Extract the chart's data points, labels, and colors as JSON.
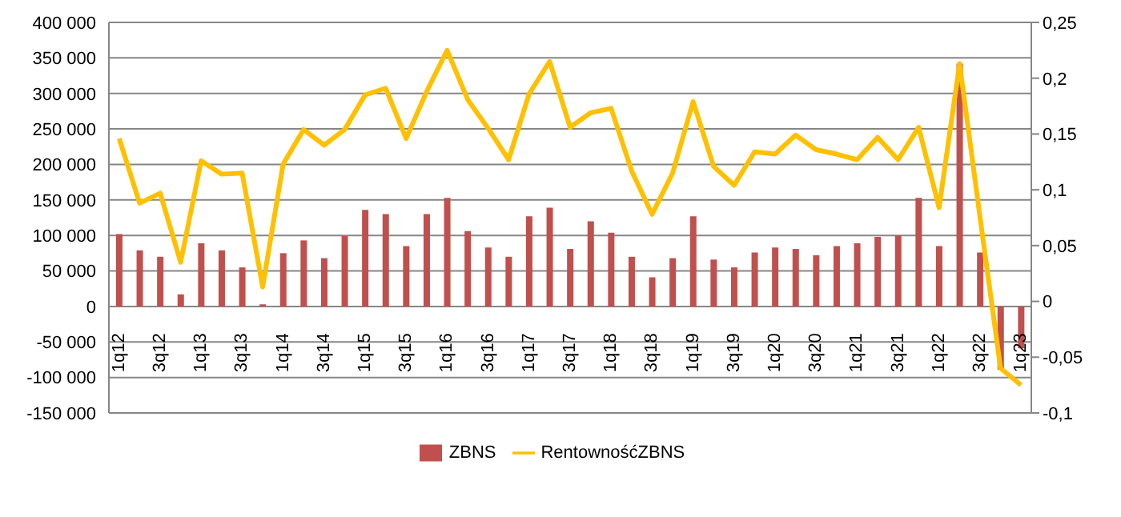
{
  "chart_data": {
    "type": "bar",
    "categories": [
      "1q12",
      null,
      "3q12",
      null,
      "1q13",
      null,
      "3q13",
      null,
      "1q14",
      null,
      "3q14",
      null,
      "1q15",
      null,
      "3q15",
      null,
      "1q16",
      null,
      "3q16",
      null,
      "1q17",
      null,
      "3q17",
      null,
      "1q18",
      null,
      "3q18",
      null,
      "1q19",
      null,
      "3q19",
      null,
      "1q20",
      null,
      "3q20",
      null,
      "1q21",
      null,
      "3q21",
      null,
      "1q22",
      null,
      "3q22",
      null,
      "1q23"
    ],
    "series": [
      {
        "name": "ZBNS",
        "color": "#c0504d",
        "values": [
          102000,
          79000,
          70000,
          17000,
          89000,
          79000,
          55000,
          3000,
          75000,
          93000,
          68000,
          99000,
          136000,
          130000,
          85000,
          130000,
          153000,
          106000,
          83000,
          70000,
          127000,
          139000,
          81000,
          120000,
          104000,
          70000,
          41000,
          68000,
          127000,
          66000,
          55000,
          76000,
          83000,
          81000,
          72000,
          85000,
          89000,
          98000,
          100000,
          153000,
          85000,
          342000,
          76000,
          -89000,
          -59000
        ]
      },
      {
        "name": "RentownośćZBNS",
        "type": "line",
        "axis": "y2",
        "color": "#ffc000",
        "values": [
          0.146,
          0.088,
          0.097,
          0.035,
          0.126,
          0.114,
          0.115,
          0.013,
          0.123,
          0.154,
          0.14,
          0.154,
          0.185,
          0.191,
          0.146,
          0.188,
          0.225,
          0.181,
          0.155,
          0.127,
          0.186,
          0.215,
          0.156,
          0.169,
          0.173,
          0.117,
          0.078,
          0.115,
          0.179,
          0.121,
          0.104,
          0.134,
          0.132,
          0.149,
          0.136,
          0.132,
          0.127,
          0.147,
          0.127,
          0.156,
          0.084,
          0.213,
          0.075,
          -0.06,
          -0.075
        ]
      }
    ],
    "ylim": [
      -150000,
      400000
    ],
    "yticks": [
      {
        "value": -150000,
        "label": "-150 000"
      },
      {
        "value": -100000,
        "label": "-100 000"
      },
      {
        "value": -50000,
        "label": "-50 000"
      },
      0,
      {
        "value": 50000,
        "label": "50 000"
      },
      {
        "value": 100000,
        "label": "100 000"
      },
      {
        "value": 150000,
        "label": "150 000"
      },
      {
        "value": 200000,
        "label": "200 000"
      },
      {
        "value": 250000,
        "label": "250 000"
      },
      {
        "value": 300000,
        "label": "300 000"
      },
      {
        "value": 350000,
        "label": "350 000"
      },
      {
        "value": 400000,
        "label": "400 000"
      }
    ],
    "y2lim": [
      -0.1,
      0.25
    ],
    "y2ticks": [
      {
        "value": -0.1,
        "label": "-0,1"
      },
      {
        "value": -0.05,
        "label": "-0,05"
      },
      0,
      {
        "value": 0.05,
        "label": "0,05"
      },
      {
        "value": 0.1,
        "label": "0,1"
      },
      {
        "value": 0.15,
        "label": "0,15"
      },
      {
        "value": 0.2,
        "label": "0,2"
      },
      {
        "value": 0.25,
        "label": "0,25"
      }
    ],
    "grid": "y",
    "legend": "bottom",
    "marker": "none"
  }
}
